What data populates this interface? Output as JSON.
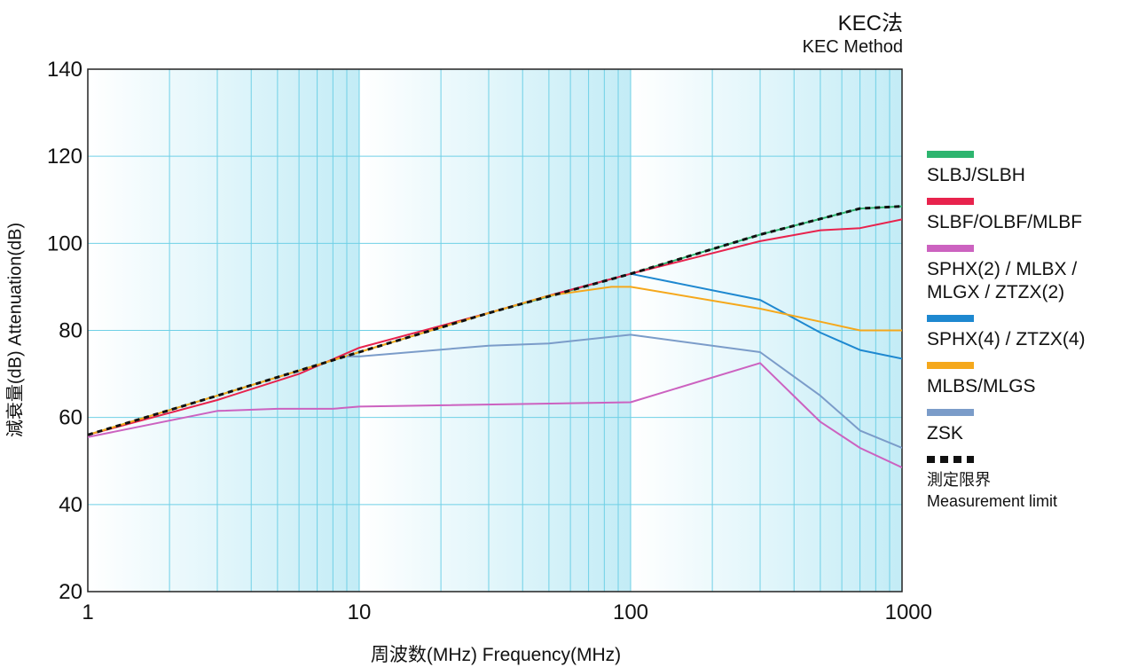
{
  "chart_data": {
    "type": "line",
    "title": "KEC法",
    "subtitle": "KEC Method",
    "xlabel": "周波数(MHz) Frequency(MHz)",
    "ylabel": "減衰量(dB) Attenuation(dB)",
    "xscale": "log",
    "xlim": [
      1,
      1000
    ],
    "ylim": [
      20,
      140
    ],
    "xticks": [
      1,
      10,
      100,
      1000
    ],
    "xtick_labels": [
      "1",
      "10",
      "100",
      "1000"
    ],
    "yticks": [
      20,
      40,
      60,
      80,
      100,
      120,
      140
    ],
    "ytick_labels": [
      "20",
      "40",
      "60",
      "80",
      "100",
      "120",
      "140"
    ],
    "grid": true,
    "legend_position": "right",
    "series": [
      {
        "name": "SLBJ/SLBH",
        "color": "#2db56f",
        "style": "solid",
        "x": [
          1,
          3,
          10,
          30,
          100,
          300,
          700,
          1000
        ],
        "y": [
          56,
          65,
          75,
          84,
          93,
          102,
          108,
          108.5
        ]
      },
      {
        "name": "SLBF/OLBF/MLBF",
        "color": "#e8234d",
        "style": "solid",
        "x": [
          1,
          3,
          6,
          10,
          30,
          50,
          100,
          300,
          500,
          700,
          1000
        ],
        "y": [
          56,
          64,
          70,
          76,
          84,
          88,
          93,
          100.5,
          103,
          103.5,
          105.5
        ]
      },
      {
        "name": "SPHX(2) / MLBX /\nMLGX / ZTZX(2)",
        "color": "#cc62c0",
        "style": "solid",
        "x": [
          1,
          3,
          5,
          8,
          10,
          100,
          300,
          500,
          700,
          1000
        ],
        "y": [
          55.5,
          61.5,
          62,
          62,
          62.5,
          63.5,
          72.5,
          59,
          53,
          48.5
        ]
      },
      {
        "name": "SPHX(4) / ZTZX(4)",
        "color": "#1e88d0",
        "style": "solid",
        "x": [
          100,
          300,
          500,
          700,
          1000
        ],
        "y": [
          93,
          87,
          79.5,
          75.5,
          73.5
        ]
      },
      {
        "name": "MLBS/MLGS",
        "color": "#f5a81c",
        "style": "solid",
        "x": [
          1,
          3,
          10,
          30,
          50,
          85,
          100,
          300,
          500,
          700,
          1000
        ],
        "y": [
          56,
          65,
          75,
          84,
          88,
          90,
          90,
          85,
          82,
          80,
          80
        ]
      },
      {
        "name": "ZSK",
        "color": "#7b9cc9",
        "style": "solid",
        "x": [
          9,
          10,
          30,
          50,
          100,
          300,
          500,
          700,
          1000
        ],
        "y": [
          74,
          74,
          76.5,
          77,
          79,
          75,
          65,
          57,
          53
        ]
      },
      {
        "name": "測定限界\nMeasurement limit",
        "color": "#111111",
        "style": "dashed",
        "x": [
          1,
          3,
          10,
          30,
          100,
          300,
          700,
          1000
        ],
        "y": [
          56,
          65,
          75,
          84,
          93,
          102,
          108,
          108.5
        ]
      }
    ]
  }
}
